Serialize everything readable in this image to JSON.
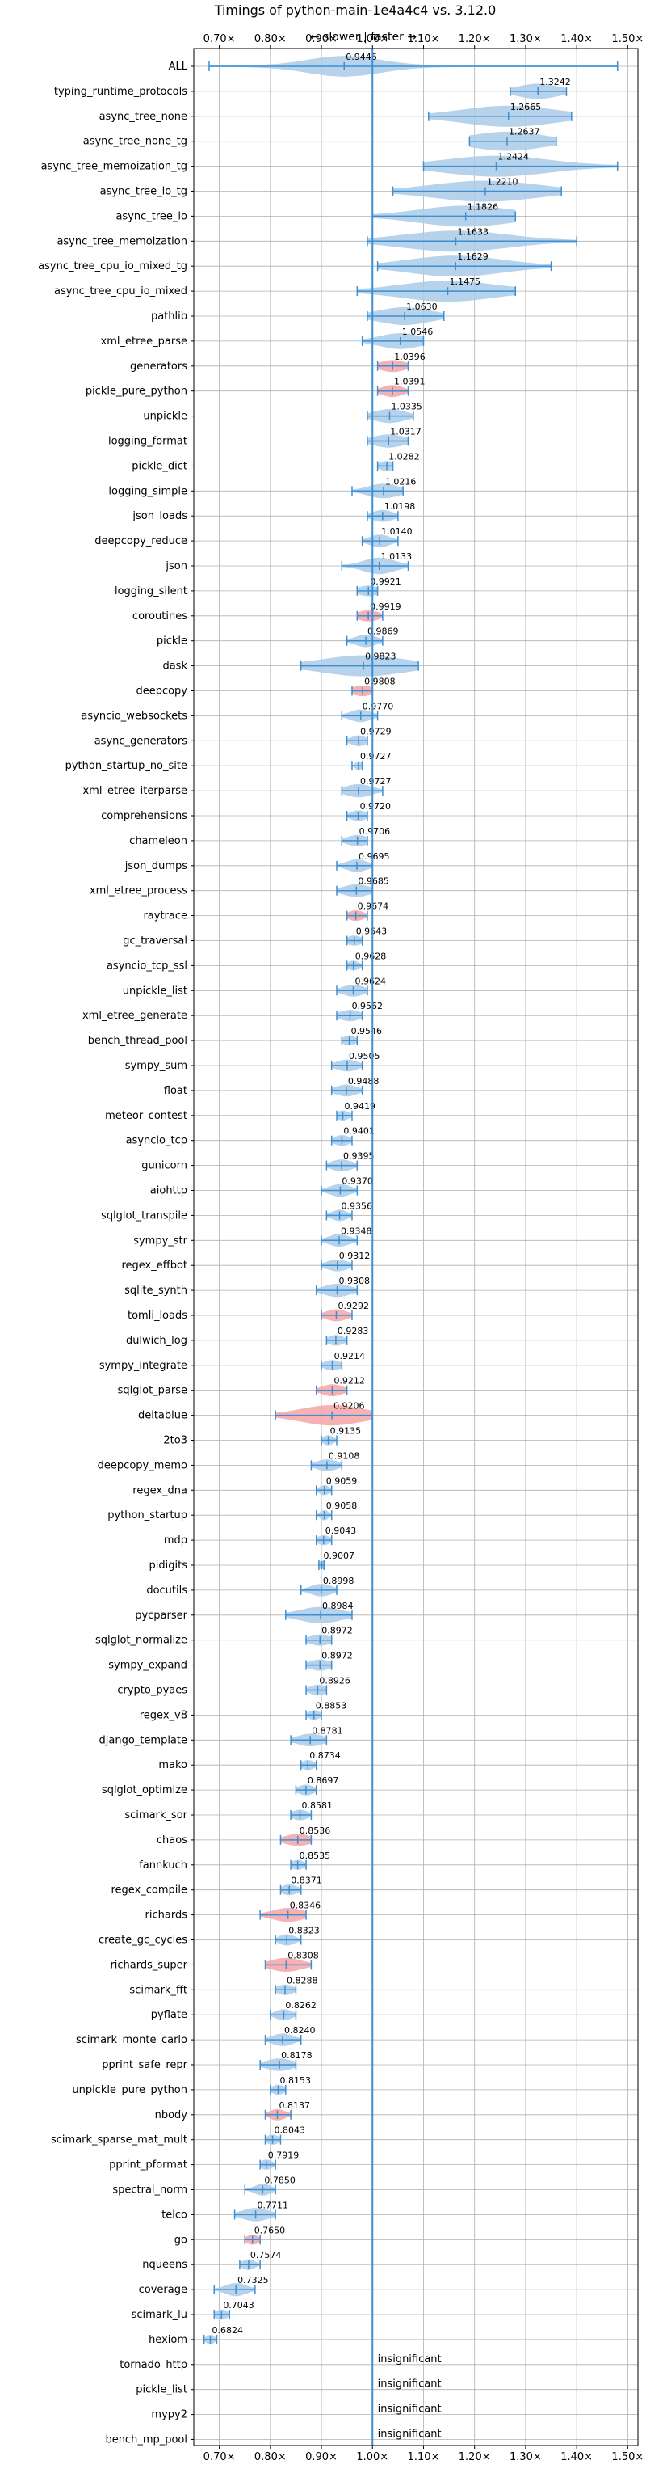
{
  "chart_data": {
    "type": "violin",
    "title": "Timings of python-main-1e4a4c4 vs. 3.12.0",
    "subtitle": "← slower | faster →",
    "xlim": [
      0.65,
      1.52
    ],
    "xticks": [
      0.7,
      0.8,
      0.9,
      1.0,
      1.1,
      1.2,
      1.3,
      1.4,
      1.5
    ],
    "xtick_labels": [
      "0.70×",
      "0.80×",
      "0.90×",
      "1.00×",
      "1.10×",
      "1.20×",
      "1.30×",
      "1.40×",
      "1.50×"
    ],
    "grid": true,
    "reference_line": 1.0,
    "insignificant_text": "insignificant",
    "colors": {
      "normal": "#3d8fd1",
      "violin": "#a9cbe8",
      "regression": "#f4a3a8",
      "grid": "#b0b0b0"
    },
    "benchmarks": [
      {
        "name": "ALL",
        "value": 0.9446,
        "label": "0.9446",
        "min": 0.68,
        "max": 1.48,
        "spread": 0.07,
        "color": "normal"
      },
      {
        "name": "typing_runtime_protocols",
        "value": 1.3242,
        "label": "1.3242",
        "min": 1.27,
        "max": 1.38,
        "spread": 0.04,
        "color": "normal"
      },
      {
        "name": "async_tree_none",
        "value": 1.2665,
        "label": "1.2665",
        "min": 1.11,
        "max": 1.39,
        "spread": 0.09,
        "color": "normal"
      },
      {
        "name": "async_tree_none_tg",
        "value": 1.2637,
        "label": "1.2637",
        "min": 1.19,
        "max": 1.36,
        "spread": 0.07,
        "color": "normal"
      },
      {
        "name": "async_tree_memoization_tg",
        "value": 1.2424,
        "label": "1.2424",
        "min": 1.1,
        "max": 1.48,
        "spread": 0.1,
        "color": "normal"
      },
      {
        "name": "async_tree_io_tg",
        "value": 1.221,
        "label": "1.2210",
        "min": 1.04,
        "max": 1.37,
        "spread": 0.1,
        "color": "normal"
      },
      {
        "name": "async_tree_io",
        "value": 1.1826,
        "label": "1.1826",
        "min": 1.0,
        "max": 1.28,
        "spread": 0.09,
        "color": "normal"
      },
      {
        "name": "async_tree_memoization",
        "value": 1.1633,
        "label": "1.1633",
        "min": 0.99,
        "max": 1.4,
        "spread": 0.1,
        "color": "normal"
      },
      {
        "name": "async_tree_cpu_io_mixed_tg",
        "value": 1.1629,
        "label": "1.1629",
        "min": 1.01,
        "max": 1.35,
        "spread": 0.09,
        "color": "normal"
      },
      {
        "name": "async_tree_cpu_io_mixed",
        "value": 1.1475,
        "label": "1.1475",
        "min": 0.97,
        "max": 1.28,
        "spread": 0.09,
        "color": "normal"
      },
      {
        "name": "pathlib",
        "value": 1.063,
        "label": "1.0630",
        "min": 0.99,
        "max": 1.14,
        "spread": 0.05,
        "color": "normal"
      },
      {
        "name": "xml_etree_parse",
        "value": 1.0546,
        "label": "1.0546",
        "min": 0.98,
        "max": 1.1,
        "spread": 0.04,
        "color": "normal"
      },
      {
        "name": "generators",
        "value": 1.0396,
        "label": "1.0396",
        "min": 1.01,
        "max": 1.07,
        "spread": 0.025,
        "color": "regression"
      },
      {
        "name": "pickle_pure_python",
        "value": 1.0391,
        "label": "1.0391",
        "min": 1.01,
        "max": 1.07,
        "spread": 0.02,
        "color": "regression"
      },
      {
        "name": "unpickle",
        "value": 1.0335,
        "label": "1.0335",
        "min": 0.99,
        "max": 1.08,
        "spread": 0.03,
        "color": "normal"
      },
      {
        "name": "logging_format",
        "value": 1.0317,
        "label": "1.0317",
        "min": 0.99,
        "max": 1.07,
        "spread": 0.03,
        "color": "normal"
      },
      {
        "name": "pickle_dict",
        "value": 1.0282,
        "label": "1.0282",
        "min": 1.01,
        "max": 1.04,
        "spread": 0.015,
        "color": "normal"
      },
      {
        "name": "logging_simple",
        "value": 1.0216,
        "label": "1.0216",
        "min": 0.96,
        "max": 1.06,
        "spread": 0.03,
        "color": "normal"
      },
      {
        "name": "json_loads",
        "value": 1.0198,
        "label": "1.0198",
        "min": 0.99,
        "max": 1.05,
        "spread": 0.02,
        "color": "normal"
      },
      {
        "name": "deepcopy_reduce",
        "value": 1.014,
        "label": "1.0140",
        "min": 0.98,
        "max": 1.05,
        "spread": 0.02,
        "color": "normal"
      },
      {
        "name": "json",
        "value": 1.0133,
        "label": "1.0133",
        "min": 0.94,
        "max": 1.07,
        "spread": 0.03,
        "color": "normal"
      },
      {
        "name": "logging_silent",
        "value": 0.9921,
        "label": "0.9921",
        "min": 0.97,
        "max": 1.01,
        "spread": 0.02,
        "color": "normal"
      },
      {
        "name": "coroutines",
        "value": 0.9919,
        "label": "0.9919",
        "min": 0.97,
        "max": 1.02,
        "spread": 0.02,
        "color": "regression"
      },
      {
        "name": "pickle",
        "value": 0.9869,
        "label": "0.9869",
        "min": 0.95,
        "max": 1.02,
        "spread": 0.02,
        "color": "normal"
      },
      {
        "name": "dask",
        "value": 0.9823,
        "label": "0.9823",
        "min": 0.86,
        "max": 1.09,
        "spread": 0.08,
        "color": "normal"
      },
      {
        "name": "deepcopy",
        "value": 0.9808,
        "label": "0.9808",
        "min": 0.96,
        "max": 1.0,
        "spread": 0.02,
        "color": "regression"
      },
      {
        "name": "asyncio_websockets",
        "value": 0.977,
        "label": "0.9770",
        "min": 0.94,
        "max": 1.01,
        "spread": 0.02,
        "color": "normal"
      },
      {
        "name": "async_generators",
        "value": 0.9729,
        "label": "0.9729",
        "min": 0.95,
        "max": 0.99,
        "spread": 0.015,
        "color": "normal"
      },
      {
        "name": "python_startup_no_site",
        "value": 0.9727,
        "label": "0.9727",
        "min": 0.96,
        "max": 0.98,
        "spread": 0.006,
        "color": "normal"
      },
      {
        "name": "xml_etree_iterparse",
        "value": 0.9727,
        "label": "0.9727",
        "min": 0.94,
        "max": 1.02,
        "spread": 0.025,
        "color": "normal"
      },
      {
        "name": "comprehensions",
        "value": 0.972,
        "label": "0.9720",
        "min": 0.95,
        "max": 0.99,
        "spread": 0.015,
        "color": "normal"
      },
      {
        "name": "chameleon",
        "value": 0.9706,
        "label": "0.9706",
        "min": 0.94,
        "max": 0.99,
        "spread": 0.02,
        "color": "normal"
      },
      {
        "name": "json_dumps",
        "value": 0.9695,
        "label": "0.9695",
        "min": 0.93,
        "max": 1.0,
        "spread": 0.02,
        "color": "normal"
      },
      {
        "name": "xml_etree_process",
        "value": 0.9685,
        "label": "0.9685",
        "min": 0.93,
        "max": 1.0,
        "spread": 0.025,
        "color": "normal"
      },
      {
        "name": "raytrace",
        "value": 0.9674,
        "label": "0.9674",
        "min": 0.95,
        "max": 0.99,
        "spread": 0.015,
        "color": "regression"
      },
      {
        "name": "gc_traversal",
        "value": 0.9643,
        "label": "0.9643",
        "min": 0.95,
        "max": 0.98,
        "spread": 0.015,
        "color": "normal"
      },
      {
        "name": "asyncio_tcp_ssl",
        "value": 0.9628,
        "label": "0.9628",
        "min": 0.95,
        "max": 0.98,
        "spread": 0.01,
        "color": "normal"
      },
      {
        "name": "unpickle_list",
        "value": 0.9624,
        "label": "0.9624",
        "min": 0.93,
        "max": 0.99,
        "spread": 0.02,
        "color": "normal"
      },
      {
        "name": "xml_etree_generate",
        "value": 0.9562,
        "label": "0.9562",
        "min": 0.93,
        "max": 0.98,
        "spread": 0.02,
        "color": "normal"
      },
      {
        "name": "bench_thread_pool",
        "value": 0.9546,
        "label": "0.9546",
        "min": 0.94,
        "max": 0.97,
        "spread": 0.012,
        "color": "normal"
      },
      {
        "name": "sympy_sum",
        "value": 0.9505,
        "label": "0.9505",
        "min": 0.92,
        "max": 0.98,
        "spread": 0.02,
        "color": "normal"
      },
      {
        "name": "float",
        "value": 0.9488,
        "label": "0.9488",
        "min": 0.92,
        "max": 0.98,
        "spread": 0.02,
        "color": "normal"
      },
      {
        "name": "meteor_contest",
        "value": 0.9419,
        "label": "0.9419",
        "min": 0.93,
        "max": 0.96,
        "spread": 0.012,
        "color": "normal"
      },
      {
        "name": "asyncio_tcp",
        "value": 0.9401,
        "label": "0.9401",
        "min": 0.92,
        "max": 0.96,
        "spread": 0.015,
        "color": "normal"
      },
      {
        "name": "gunicorn",
        "value": 0.9395,
        "label": "0.9395",
        "min": 0.91,
        "max": 0.97,
        "spread": 0.02,
        "color": "normal"
      },
      {
        "name": "aiohttp",
        "value": 0.937,
        "label": "0.9370",
        "min": 0.9,
        "max": 0.97,
        "spread": 0.02,
        "color": "normal"
      },
      {
        "name": "sqlglot_transpile",
        "value": 0.9356,
        "label": "0.9356",
        "min": 0.91,
        "max": 0.96,
        "spread": 0.015,
        "color": "normal"
      },
      {
        "name": "sympy_str",
        "value": 0.9348,
        "label": "0.9348",
        "min": 0.9,
        "max": 0.97,
        "spread": 0.02,
        "color": "normal"
      },
      {
        "name": "regex_effbot",
        "value": 0.9312,
        "label": "0.9312",
        "min": 0.9,
        "max": 0.96,
        "spread": 0.02,
        "color": "normal"
      },
      {
        "name": "sqlite_synth",
        "value": 0.9308,
        "label": "0.9308",
        "min": 0.89,
        "max": 0.97,
        "spread": 0.025,
        "color": "normal"
      },
      {
        "name": "tomli_loads",
        "value": 0.9292,
        "label": "0.9292",
        "min": 0.9,
        "max": 0.96,
        "spread": 0.02,
        "color": "regression"
      },
      {
        "name": "dulwich_log",
        "value": 0.9283,
        "label": "0.9283",
        "min": 0.91,
        "max": 0.95,
        "spread": 0.015,
        "color": "normal"
      },
      {
        "name": "sympy_integrate",
        "value": 0.9214,
        "label": "0.9214",
        "min": 0.9,
        "max": 0.94,
        "spread": 0.015,
        "color": "normal"
      },
      {
        "name": "sqlglot_parse",
        "value": 0.9212,
        "label": "0.9212",
        "min": 0.89,
        "max": 0.95,
        "spread": 0.02,
        "color": "regression"
      },
      {
        "name": "deltablue",
        "value": 0.9206,
        "label": "0.9206",
        "min": 0.81,
        "max": 1.0,
        "spread": 0.06,
        "color": "regression"
      },
      {
        "name": "2to3",
        "value": 0.9135,
        "label": "0.9135",
        "min": 0.9,
        "max": 0.93,
        "spread": 0.01,
        "color": "normal"
      },
      {
        "name": "deepcopy_memo",
        "value": 0.9108,
        "label": "0.9108",
        "min": 0.88,
        "max": 0.94,
        "spread": 0.02,
        "color": "normal"
      },
      {
        "name": "regex_dna",
        "value": 0.9059,
        "label": "0.9059",
        "min": 0.89,
        "max": 0.92,
        "spread": 0.01,
        "color": "normal"
      },
      {
        "name": "python_startup",
        "value": 0.9058,
        "label": "0.9058",
        "min": 0.89,
        "max": 0.92,
        "spread": 0.008,
        "color": "normal"
      },
      {
        "name": "mdp",
        "value": 0.9043,
        "label": "0.9043",
        "min": 0.89,
        "max": 0.92,
        "spread": 0.012,
        "color": "normal"
      },
      {
        "name": "pidigits",
        "value": 0.9007,
        "label": "0.9007",
        "min": 0.895,
        "max": 0.905,
        "spread": 0.004,
        "color": "normal"
      },
      {
        "name": "docutils",
        "value": 0.8998,
        "label": "0.8998",
        "min": 0.86,
        "max": 0.93,
        "spread": 0.02,
        "color": "normal"
      },
      {
        "name": "pycparser",
        "value": 0.8984,
        "label": "0.8984",
        "min": 0.83,
        "max": 0.96,
        "spread": 0.04,
        "color": "normal"
      },
      {
        "name": "sqlglot_normalize",
        "value": 0.8972,
        "label": "0.8972",
        "min": 0.87,
        "max": 0.92,
        "spread": 0.02,
        "color": "normal"
      },
      {
        "name": "sympy_expand",
        "value": 0.8972,
        "label": "0.8972",
        "min": 0.87,
        "max": 0.92,
        "spread": 0.02,
        "color": "normal"
      },
      {
        "name": "crypto_pyaes",
        "value": 0.8926,
        "label": "0.8926",
        "min": 0.87,
        "max": 0.91,
        "spread": 0.015,
        "color": "normal"
      },
      {
        "name": "regex_v8",
        "value": 0.8853,
        "label": "0.8853",
        "min": 0.87,
        "max": 0.9,
        "spread": 0.01,
        "color": "normal"
      },
      {
        "name": "django_template",
        "value": 0.8781,
        "label": "0.8781",
        "min": 0.84,
        "max": 0.91,
        "spread": 0.025,
        "color": "normal"
      },
      {
        "name": "mako",
        "value": 0.8734,
        "label": "0.8734",
        "min": 0.86,
        "max": 0.89,
        "spread": 0.012,
        "color": "normal"
      },
      {
        "name": "sqlglot_optimize",
        "value": 0.8697,
        "label": "0.8697",
        "min": 0.85,
        "max": 0.89,
        "spread": 0.015,
        "color": "normal"
      },
      {
        "name": "scimark_sor",
        "value": 0.8581,
        "label": "0.8581",
        "min": 0.84,
        "max": 0.88,
        "spread": 0.015,
        "color": "normal"
      },
      {
        "name": "chaos",
        "value": 0.8536,
        "label": "0.8536",
        "min": 0.82,
        "max": 0.88,
        "spread": 0.025,
        "color": "regression"
      },
      {
        "name": "fannkuch",
        "value": 0.8535,
        "label": "0.8535",
        "min": 0.84,
        "max": 0.87,
        "spread": 0.012,
        "color": "normal"
      },
      {
        "name": "regex_compile",
        "value": 0.8371,
        "label": "0.8371",
        "min": 0.82,
        "max": 0.86,
        "spread": 0.015,
        "color": "normal"
      },
      {
        "name": "richards",
        "value": 0.8346,
        "label": "0.8346",
        "min": 0.78,
        "max": 0.87,
        "spread": 0.03,
        "color": "regression"
      },
      {
        "name": "create_gc_cycles",
        "value": 0.8323,
        "label": "0.8323",
        "min": 0.81,
        "max": 0.86,
        "spread": 0.015,
        "color": "normal"
      },
      {
        "name": "richards_super",
        "value": 0.8308,
        "label": "0.8308",
        "min": 0.79,
        "max": 0.88,
        "spread": 0.03,
        "color": "regression"
      },
      {
        "name": "scimark_fft",
        "value": 0.8288,
        "label": "0.8288",
        "min": 0.81,
        "max": 0.85,
        "spread": 0.015,
        "color": "normal"
      },
      {
        "name": "pyflate",
        "value": 0.8262,
        "label": "0.8262",
        "min": 0.8,
        "max": 0.85,
        "spread": 0.015,
        "color": "normal"
      },
      {
        "name": "scimark_monte_carlo",
        "value": 0.824,
        "label": "0.8240",
        "min": 0.79,
        "max": 0.86,
        "spread": 0.02,
        "color": "normal"
      },
      {
        "name": "pprint_safe_repr",
        "value": 0.8178,
        "label": "0.8178",
        "min": 0.78,
        "max": 0.85,
        "spread": 0.025,
        "color": "normal"
      },
      {
        "name": "unpickle_pure_python",
        "value": 0.8153,
        "label": "0.8153",
        "min": 0.8,
        "max": 0.83,
        "spread": 0.012,
        "color": "normal"
      },
      {
        "name": "nbody",
        "value": 0.8137,
        "label": "0.8137",
        "min": 0.79,
        "max": 0.84,
        "spread": 0.015,
        "color": "regression"
      },
      {
        "name": "scimark_sparse_mat_mult",
        "value": 0.8043,
        "label": "0.8043",
        "min": 0.79,
        "max": 0.82,
        "spread": 0.012,
        "color": "normal"
      },
      {
        "name": "pprint_pformat",
        "value": 0.7919,
        "label": "0.7919",
        "min": 0.78,
        "max": 0.81,
        "spread": 0.012,
        "color": "normal"
      },
      {
        "name": "spectral_norm",
        "value": 0.785,
        "label": "0.7850",
        "min": 0.75,
        "max": 0.81,
        "spread": 0.015,
        "color": "normal"
      },
      {
        "name": "telco",
        "value": 0.7711,
        "label": "0.7711",
        "min": 0.73,
        "max": 0.81,
        "spread": 0.025,
        "color": "normal"
      },
      {
        "name": "go",
        "value": 0.765,
        "label": "0.7650",
        "min": 0.75,
        "max": 0.78,
        "spread": 0.012,
        "color": "regression"
      },
      {
        "name": "nqueens",
        "value": 0.7574,
        "label": "0.7574",
        "min": 0.74,
        "max": 0.78,
        "spread": 0.012,
        "color": "normal"
      },
      {
        "name": "coverage",
        "value": 0.7325,
        "label": "0.7325",
        "min": 0.69,
        "max": 0.77,
        "spread": 0.02,
        "color": "normal"
      },
      {
        "name": "scimark_lu",
        "value": 0.7043,
        "label": "0.7043",
        "min": 0.69,
        "max": 0.72,
        "spread": 0.012,
        "color": "normal"
      },
      {
        "name": "hexiom",
        "value": 0.6824,
        "label": "0.6824",
        "min": 0.67,
        "max": 0.695,
        "spread": 0.008,
        "color": "normal"
      },
      {
        "name": "tornado_http",
        "insignificant": true
      },
      {
        "name": "pickle_list",
        "insignificant": true
      },
      {
        "name": "mypy2",
        "insignificant": true
      },
      {
        "name": "bench_mp_pool",
        "insignificant": true
      }
    ]
  }
}
